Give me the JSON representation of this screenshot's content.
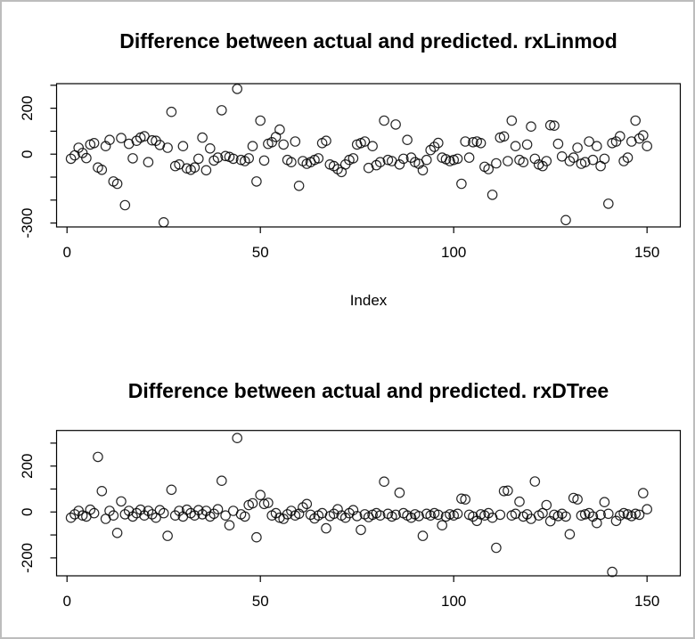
{
  "window": {
    "background": "#ffffff",
    "border_color": "#bdbdbd"
  },
  "style": {
    "point_color": "#000000",
    "axis_color": "#000000",
    "text_color": "#000000",
    "plot_background": "#ffffff"
  },
  "chart_data": [
    {
      "type": "scatter",
      "title": "Difference between actual and predicted. rxLinmod",
      "xlabel": "Index",
      "ylabel": "",
      "marker": "open-circle",
      "grid": false,
      "xlim": [
        -2.7,
        158.6
      ],
      "ylim": [
        -317,
        307
      ],
      "xticks": {
        "values": [
          0,
          50,
          100,
          150
        ],
        "labels": [
          "0",
          "50",
          "100",
          "150"
        ]
      },
      "yticks": {
        "values": [
          300,
          200,
          100,
          0,
          -100,
          -200,
          -300
        ],
        "labels": [
          "",
          "200",
          "",
          "0",
          "",
          "",
          "-300"
        ]
      },
      "index_start": 1,
      "values": [
        -20,
        -5,
        28,
        5,
        -17,
        42,
        48,
        -58,
        -68,
        35,
        62,
        -119,
        -129,
        70,
        -222,
        45,
        -18,
        58,
        72,
        78,
        -35,
        60,
        58,
        40,
        -297,
        28,
        184,
        -52,
        -45,
        35,
        -62,
        -68,
        -58,
        -20,
        72,
        -70,
        25,
        -28,
        -15,
        191,
        -8,
        -12,
        -20,
        284,
        -25,
        -30,
        -18,
        35,
        -119,
        146,
        -28,
        45,
        52,
        75,
        107,
        42,
        -25,
        -35,
        55,
        -138,
        -30,
        -42,
        -35,
        -25,
        -18,
        48,
        58,
        -45,
        -52,
        -65,
        -78,
        -45,
        -25,
        -18,
        42,
        48,
        55,
        -60,
        35,
        -48,
        -35,
        146,
        -25,
        -30,
        129,
        -45,
        -20,
        62,
        -15,
        -35,
        -42,
        -70,
        -25,
        18,
        32,
        49,
        -15,
        -22,
        -30,
        -25,
        -20,
        -129,
        55,
        -15,
        52,
        55,
        48,
        -55,
        -65,
        -177,
        -40,
        72,
        77,
        -30,
        146,
        35,
        -25,
        -35,
        42,
        120,
        -20,
        -45,
        -52,
        -30,
        126,
        124,
        45,
        -10,
        -287,
        -30,
        -15,
        28,
        -42,
        -35,
        55,
        -25,
        35,
        -52,
        -20,
        -216,
        48,
        55,
        78,
        -30,
        -15,
        55,
        146,
        68,
        82,
        35
      ]
    },
    {
      "type": "scatter",
      "title": "Difference between actual and predicted. rxDTree",
      "xlabel": "",
      "ylabel": "",
      "marker": "open-circle",
      "grid": false,
      "xlim": [
        -2.7,
        158.6
      ],
      "ylim": [
        -278,
        355
      ],
      "xticks": {
        "values": [
          0,
          50,
          100,
          150
        ],
        "labels": [
          "0",
          "50",
          "100",
          "150"
        ]
      },
      "yticks": {
        "values": [
          300,
          200,
          100,
          0,
          -100,
          -200
        ],
        "labels": [
          "",
          "200",
          "",
          "0",
          "",
          "-200"
        ]
      },
      "index_start": 1,
      "values": [
        -25,
        -10,
        5,
        -15,
        -20,
        10,
        -5,
        240,
        91,
        -30,
        5,
        -15,
        -91,
        46,
        -10,
        5,
        -20,
        -5,
        10,
        -15,
        5,
        -10,
        -25,
        8,
        -5,
        -104,
        97,
        -15,
        5,
        -20,
        10,
        -5,
        -15,
        8,
        -10,
        5,
        -20,
        -8,
        12,
        136,
        -15,
        -58,
        5,
        322,
        -10,
        -20,
        30,
        38,
        -110,
        74,
        35,
        40,
        -15,
        -5,
        -25,
        -30,
        -10,
        5,
        -15,
        -8,
        20,
        35,
        -12,
        -28,
        -15,
        -5,
        -71,
        -18,
        -8,
        12,
        -15,
        -25,
        -5,
        8,
        -18,
        -78,
        -10,
        -22,
        -12,
        -5,
        -15,
        132,
        -8,
        -20,
        -12,
        84,
        -5,
        -15,
        -25,
        -10,
        -18,
        -104,
        -8,
        -15,
        -5,
        -12,
        -58,
        -20,
        -10,
        -15,
        -8,
        58,
        55,
        -12,
        -20,
        -39,
        -10,
        -15,
        -5,
        -25,
        -156,
        -12,
        91,
        93,
        -15,
        -8,
        45,
        -20,
        -10,
        -30,
        133,
        -15,
        -5,
        30,
        -40,
        -12,
        -18,
        -8,
        -20,
        -97,
        61,
        55,
        -15,
        -10,
        -5,
        -20,
        -48,
        -12,
        43,
        -8,
        -261,
        -39,
        -15,
        -5,
        -10,
        -18,
        -8,
        -12,
        82,
        12
      ]
    }
  ]
}
